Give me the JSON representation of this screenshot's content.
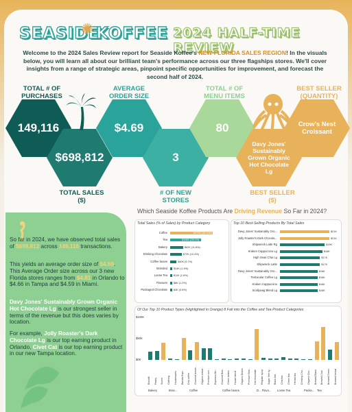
{
  "header": {
    "brand_left": "SEASIDE",
    "brand_right": "KOFFEE",
    "review_title": "2024 HALF-TIME REVIEW"
  },
  "intro": {
    "p1": "Welcome to the 2024 Sales Review report for Seaside Koffee's ",
    "hl1": "NEW FLORIDA SALES REGION",
    "p2": "! In the visuals below, you will learn all about our brilliant team's performance across our three flagships stores. We'll cover insights from a range of strategic areas, pinpoint specific opportunities for improvement, and forecast the second half of 2024."
  },
  "kpis": {
    "purchases_label": "TOTAL # OF PURCHASES",
    "purchases_value": "149,116",
    "sales_value": "$698,812",
    "sales_label": "TOTAL SALES ($)",
    "order_label": "AVERAGE ORDER SIZE",
    "order_value": "$4.69",
    "stores_value": "3",
    "stores_label": "# OF NEW STORES",
    "menu_label": "TOTAL # OF MENU ITEMS",
    "menu_value": "80",
    "best_rev_value": "Davy Jones' Sustainably Grown Organic Hot Chocolate Lg",
    "best_rev_label": "BEST SELLER ($)",
    "best_qty_label": "BEST SELLER (QUANTITY)",
    "best_qty_value": "Crow's Nest Croissant"
  },
  "section_title": {
    "a": "Which Seaside Koffee Products Are ",
    "b": "Driving Revenue",
    "c": " So Far in 2024?"
  },
  "left_text": {
    "a1": "So far in 2024, we have observed total sales of ",
    "a2": "$698,812",
    "a3": " across ",
    "a4": "149,116",
    "a5": " transactions.",
    "b1": "This yields an average order size of ",
    "b2": "$4.69",
    "b3": ". This Average Order size across our 3 new Florida stores ranges from ",
    "b4": "$4.81",
    "b5": " in Orlando to $4.66 in Tampa and $4.59 in Miami.",
    "c1": "Davy Jones' Sustainably Grown Organic Hot Chocolate Lg",
    "c2": " is our strongest seller in terms of the revenue but this does varies by location.",
    "d1": "For example, ",
    "d2": "Jolly Roaster's Dark Chocolate Lg",
    "d3": " is our top earning product in Orlando, ",
    "d4": "Civet Cat",
    "d5": " is our top earning product in our new Tampa location."
  },
  "chart_data": [
    {
      "type": "bar",
      "title": "Total Sales (% of Sales) by Product Category",
      "categories": [
        "Coffee",
        "Tea",
        "Bakery",
        "Drinking Chocolate",
        "Coffee beans",
        "Branded",
        "Loose Tea",
        "Flavours",
        "Packaged Chocolate"
      ],
      "values": [
        269952,
        196406,
        82315,
        72416,
        40085,
        13607,
        11213,
        8409,
        4408
      ],
      "labels": [
        "$270K (38.63%)",
        "$196K (28.1%)",
        "$82K (11.8%)",
        "$72K (10.4%)",
        "$40K (5.7%)",
        "$14K (1.9%)",
        "$11K (1.6%)",
        "$8K (1.2%)",
        "$4K (0.6%)"
      ],
      "colors": [
        "#e8b25a",
        "#2aa39a",
        "#1f7a6f",
        "#1f7a6f",
        "#1f7a6f",
        "#1f7a6f",
        "#1f7a6f",
        "#1f7a6f",
        "#1f7a6f"
      ],
      "highlight": [
        "$270K (38.63%)",
        "$196K (28.1%)"
      ]
    },
    {
      "type": "bar",
      "title": "Top 10 Best-Selling Products By Total Sales",
      "categories": [
        "Davy Jones' Sustainably Gro...",
        "Jolly Roaster's Dark Chocola...",
        "Shipwreck Latte Rg",
        "Kraken Cappuccino Lg",
        "High Seas Chai Lg",
        "Shipwreck Latte",
        "Davy Jones' Sustainably Gro...",
        "Tentacular Coffee Lg",
        "Kraken Cappuccino",
        "Scallywag Blend Lg"
      ],
      "values": [
        21,
        21,
        19,
        18,
        17,
        17,
        16,
        16,
        16,
        16
      ],
      "labels": [
        "$21K",
        "$21K",
        "$19K",
        "$18K",
        "$17K",
        "$17K",
        "$16K",
        "$16K",
        "$16K",
        "$16K"
      ],
      "colors": [
        "#e8b25a",
        "#e8b25a",
        "#1f7a6f",
        "#1f7a6f",
        "#1f7a6f",
        "#1f7a6f",
        "#1f7a6f",
        "#1f7a6f",
        "#1f7a6f",
        "#1f7a6f"
      ]
    },
    {
      "type": "bar",
      "title": "Of Our Top 10 Product Types (Highlighted in Orange) 8 Fall into the Coffee and Tea Product Categories",
      "ylim": [
        0,
        100
      ],
      "yticks": [
        "$100K",
        "$50K",
        "$0K"
      ],
      "groups": [
        "Bakery",
        "Bran...",
        "Coffee",
        "Coffee beans",
        "D... Flavo...",
        "Loose Tea",
        "Packa...",
        "Tea"
      ],
      "categories": [
        "Biscotti",
        "Pastry",
        "Scone",
        "Clothing",
        "Housewares",
        "Barista Espr...",
        "Drip coffee",
        "Gourmet brewe...",
        "Organic brewe...",
        "Premium bre...",
        "Espresso Be...",
        "Gourmet Bea...",
        "Green beans",
        "House blend",
        "Organic Beans",
        "Premium Bea...",
        "Hot chocolate",
        "Regular syrup",
        "Sugar free sy...",
        "Black tea",
        "Chai tea",
        "Green tea",
        "Herbal tea",
        "Drinking Cho...",
        "Organic Cho...",
        "Brewed Black",
        "Brewed Chai",
        "Brewed Green",
        "Brewed herbal"
      ],
      "values": [
        19,
        21,
        40,
        4,
        2,
        52,
        22,
        42,
        27,
        27,
        2,
        4,
        1,
        3,
        3,
        2,
        72,
        5,
        3,
        3,
        6,
        3,
        4,
        2,
        2,
        43,
        78,
        24,
        42
      ],
      "highlight": [
        false,
        false,
        true,
        false,
        false,
        true,
        false,
        true,
        false,
        false,
        false,
        false,
        false,
        false,
        false,
        false,
        true,
        false,
        false,
        false,
        false,
        false,
        false,
        false,
        false,
        true,
        true,
        false,
        true
      ]
    }
  ],
  "colors": {
    "teal_dark": "#0f5c56",
    "teal": "#2aa39a",
    "green": "#8ecf92",
    "orange": "#e8b25a",
    "text_dark": "#2f4b48"
  }
}
